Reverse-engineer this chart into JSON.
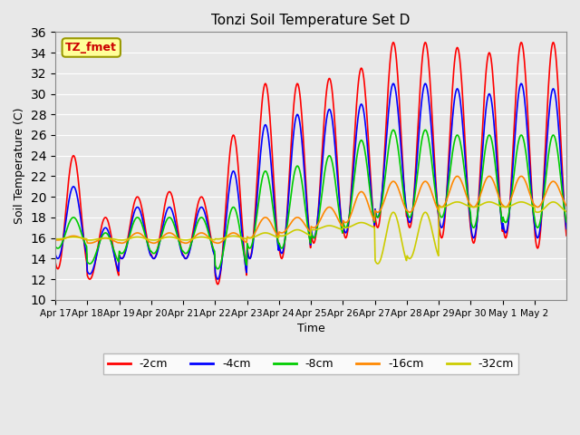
{
  "title": "Tonzi Soil Temperature Set D",
  "xlabel": "Time",
  "ylabel": "Soil Temperature (C)",
  "ylim": [
    10,
    36
  ],
  "yticks": [
    10,
    12,
    14,
    16,
    18,
    20,
    22,
    24,
    26,
    28,
    30,
    32,
    34,
    36
  ],
  "bg_color": "#e8e8e8",
  "annotation_text": "TZ_fmet",
  "annotation_color": "#cc0000",
  "annotation_bg": "#ffff99",
  "annotation_border": "#999900",
  "series_colors": {
    "-2cm": "#ff0000",
    "-4cm": "#0000ff",
    "-8cm": "#00cc00",
    "-16cm": "#ff8800",
    "-32cm": "#cccc00"
  },
  "series_labels": [
    "-2cm",
    "-4cm",
    "-8cm",
    "-16cm",
    "-32cm"
  ],
  "xtick_labels": [
    "Apr 17",
    "Apr 18",
    "Apr 19",
    "Apr 20",
    "Apr 21",
    "Apr 22",
    "Apr 23",
    "Apr 24",
    "Apr 25",
    "Apr 26",
    "Apr 27",
    "Apr 28",
    "Apr 29",
    "Apr 30",
    "May 1",
    "May 2"
  ],
  "grid_color": "#ffffff",
  "linewidth": 1.2,
  "n_days": 16,
  "pts_per_day": 48,
  "peaks_2cm": [
    24,
    18,
    20,
    20.5,
    20,
    26,
    31,
    31,
    31.5,
    32.5,
    35,
    35,
    34.5,
    34,
    35,
    35
  ],
  "troughs_2cm": [
    13,
    12,
    14,
    14,
    14,
    11.5,
    14,
    14,
    15.5,
    16,
    17,
    17,
    16,
    15.5,
    16,
    15
  ],
  "peaks_4cm": [
    21,
    17,
    19,
    19,
    19,
    22.5,
    27,
    28,
    28.5,
    29,
    31,
    31,
    30.5,
    30,
    31,
    30.5
  ],
  "troughs_4cm": [
    14,
    12.5,
    14,
    14,
    14,
    12,
    14,
    14.5,
    16,
    16.5,
    18,
    17.5,
    17,
    16,
    16.5,
    16
  ],
  "peaks_8cm": [
    18,
    16.5,
    18,
    18,
    18,
    19,
    22.5,
    23,
    24,
    25.5,
    26.5,
    26.5,
    26,
    26,
    26,
    26
  ],
  "troughs_8cm": [
    15,
    13.5,
    14.5,
    14.5,
    14.5,
    13,
    15,
    15,
    16,
    17,
    18,
    18,
    18,
    17,
    17.5,
    17
  ],
  "peaks_16cm": [
    16.2,
    16,
    16.5,
    16.5,
    16.5,
    16.5,
    18,
    18,
    19,
    20.5,
    21.5,
    21.5,
    22,
    22,
    22,
    21.5
  ],
  "troughs_16cm": [
    15.8,
    15.5,
    15.5,
    15.5,
    15.5,
    15.5,
    16,
    16.5,
    17,
    17.5,
    18.5,
    18.5,
    19,
    19,
    19,
    19
  ],
  "peaks_32cm": [
    16.1,
    16,
    16.1,
    16.1,
    16.1,
    16.2,
    16.5,
    16.8,
    17.2,
    17.5,
    18.5,
    18.5,
    19.5,
    19.5,
    19.5,
    19.5
  ],
  "troughs_32cm": [
    15.9,
    15.8,
    15.8,
    15.8,
    15.8,
    15.9,
    16,
    16.2,
    16.8,
    17,
    13.5,
    14,
    19,
    19,
    19,
    18.5
  ]
}
